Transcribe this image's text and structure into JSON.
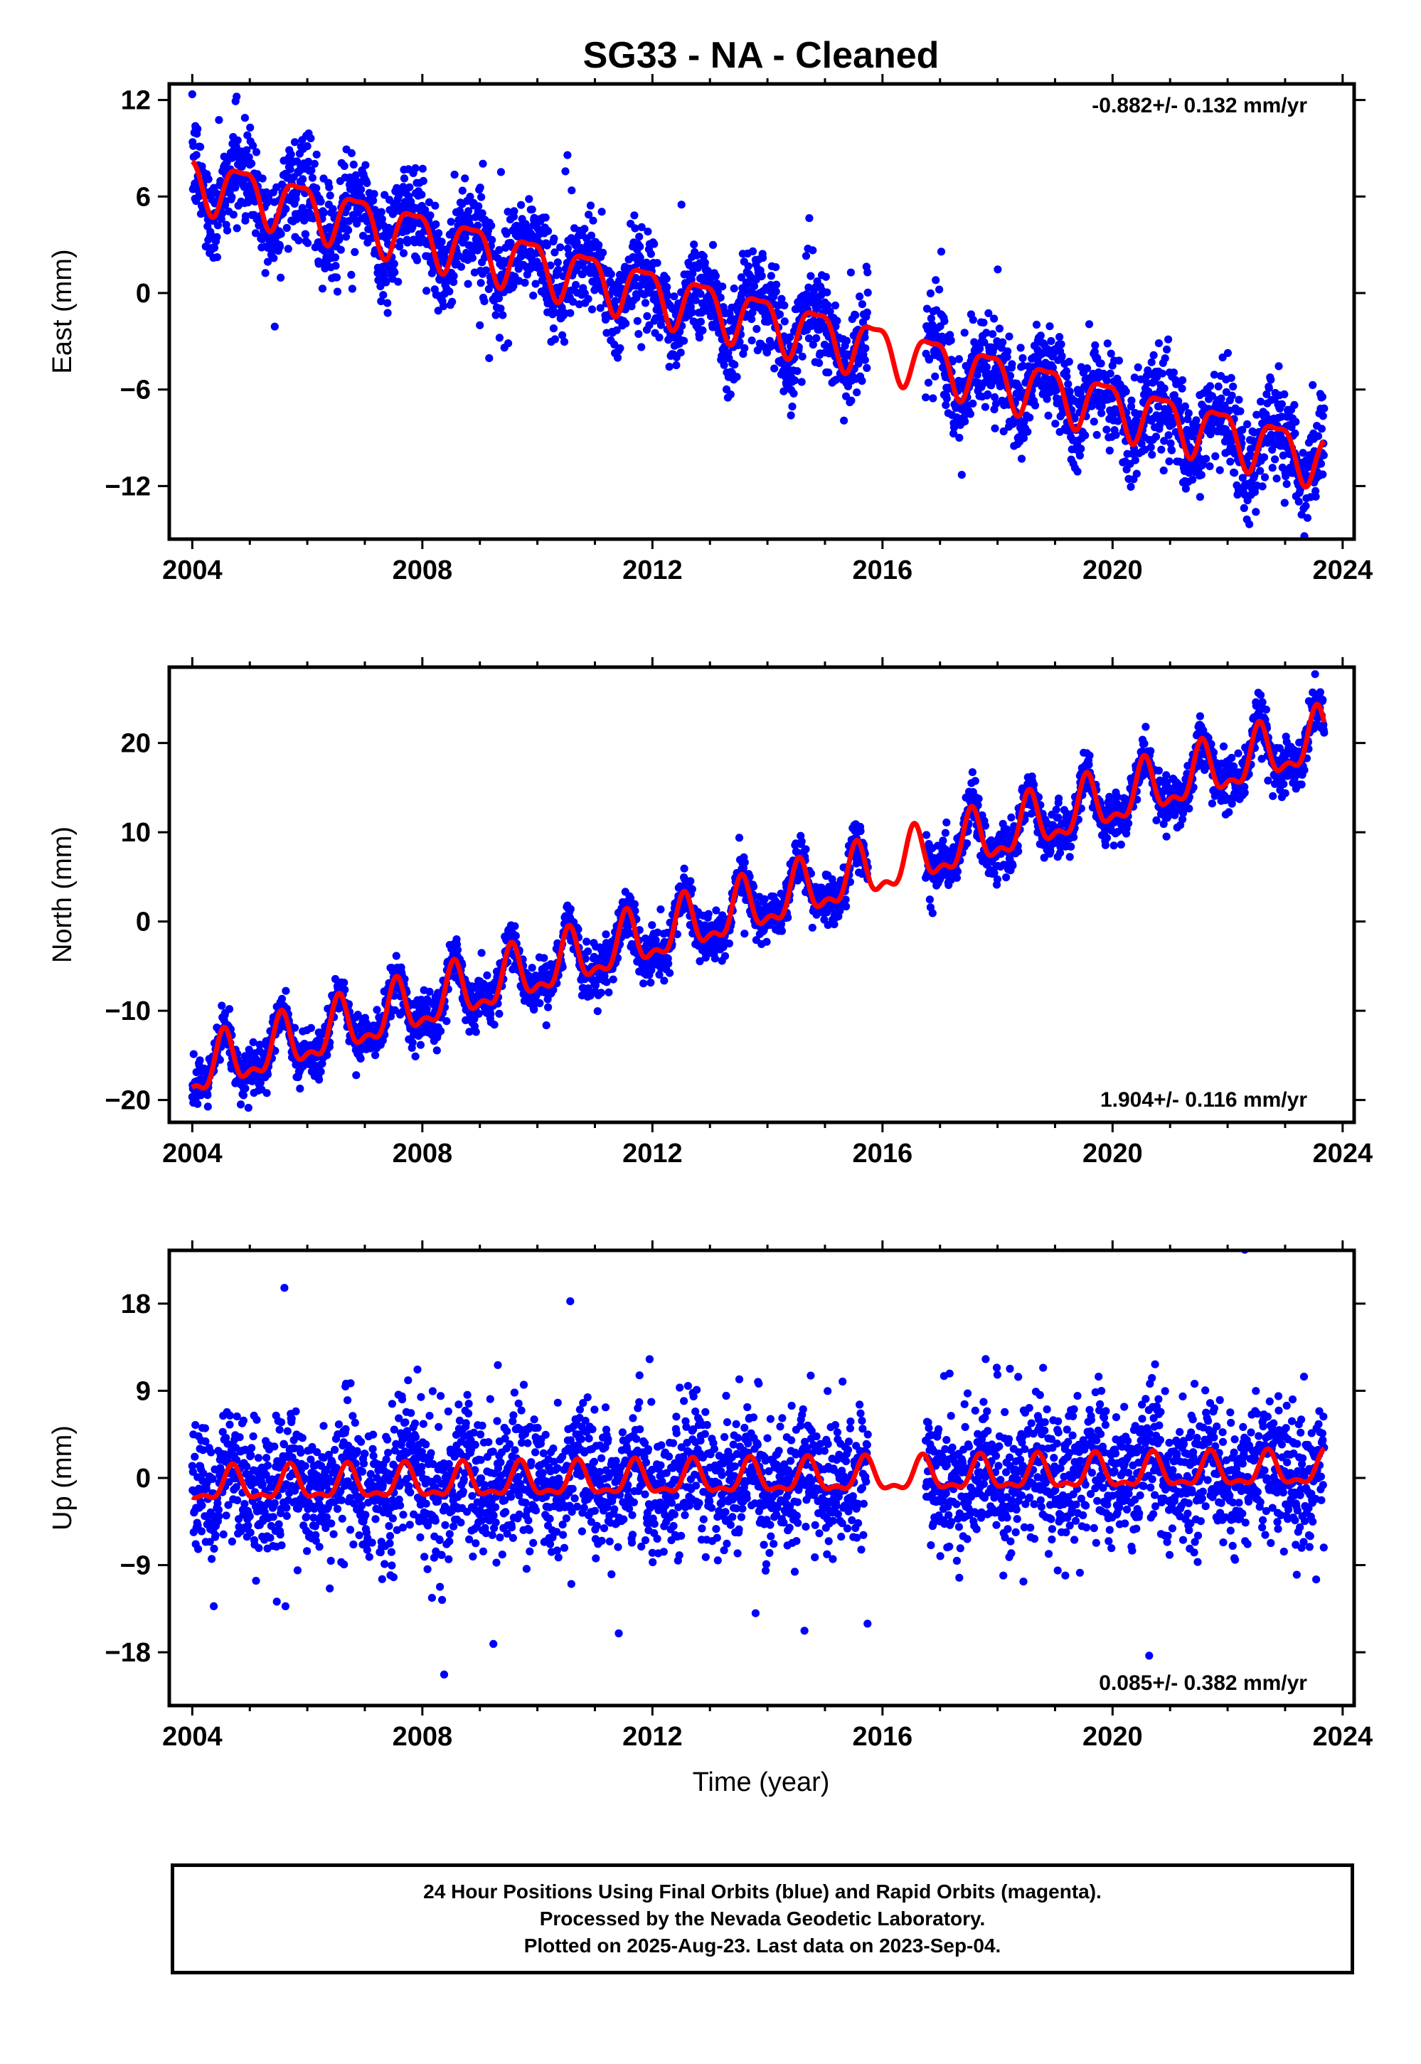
{
  "title": "SG33  - NA - Cleaned",
  "xlabel": "Time (year)",
  "footer": {
    "line1": "24 Hour Positions Using Final Orbits (blue) and Rapid Orbits (magenta).",
    "line2": "Processed by the Nevada Geodetic Laboratory.",
    "line3": "Plotted on 2025-Aug-23. Last data on 2023-Sep-04."
  },
  "colors": {
    "points": "#0000ff",
    "model": "#ff0000",
    "frame": "#000000"
  },
  "chart_data": [
    {
      "type": "scatter",
      "ylabel": "East (mm)",
      "rate_label": "-0.882+/- 0.132 mm/yr",
      "rate_position": "top-right",
      "xlim": [
        2003.6,
        2024.2
      ],
      "ylim": [
        -15.3,
        13.0
      ],
      "x_ticks": [
        "2004",
        "2008",
        "2012",
        "2016",
        "2020",
        "2024"
      ],
      "y_ticks": [
        12,
        6,
        0,
        -6,
        -12
      ],
      "y_tick_labels": [
        "12",
        "6",
        "0",
        "−6",
        "−12"
      ],
      "data_start": 2004.0,
      "data_end": 2023.68,
      "gap": [
        2015.75,
        2016.75
      ],
      "model": {
        "ref_year": 2004.0,
        "intercept": 7.1,
        "rate": -0.882,
        "annual_amp": 1.6,
        "annual_phase_year": 2004.85,
        "semiannual_amp": 0.5,
        "semiannual_phase_year": 2004.1
      },
      "scatter_sigma": 1.5,
      "series": [
        {
          "name": "24 Hour Positions",
          "marker": "dot"
        }
      ]
    },
    {
      "type": "scatter",
      "ylabel": "North (mm)",
      "rate_label": "1.904+/- 0.116 mm/yr",
      "rate_position": "bottom-right",
      "xlim": [
        2003.6,
        2024.2
      ],
      "ylim": [
        -22.5,
        28.5
      ],
      "x_ticks": [
        "2004",
        "2008",
        "2012",
        "2016",
        "2020",
        "2024"
      ],
      "y_ticks": [
        20,
        10,
        0,
        -10,
        -20
      ],
      "y_tick_labels": [
        "20",
        "10",
        "0",
        "−10",
        "−20"
      ],
      "data_start": 2004.0,
      "data_end": 2023.68,
      "gap": [
        2015.75,
        2016.75
      ],
      "model": {
        "ref_year": 2004.0,
        "intercept": -17.0,
        "rate": 1.904,
        "annual_amp": 2.8,
        "annual_phase_year": 2004.55,
        "semiannual_amp": 1.3,
        "semiannual_phase_year": 2004.05
      },
      "scatter_sigma": 1.3,
      "series": [
        {
          "name": "24 Hour Positions",
          "marker": "dot"
        }
      ]
    },
    {
      "type": "scatter",
      "ylabel": "Up (mm)",
      "rate_label": "0.085+/- 0.382 mm/yr",
      "rate_position": "bottom-right",
      "xlim": [
        2003.6,
        2024.2
      ],
      "ylim": [
        -23.5,
        23.5
      ],
      "x_ticks": [
        "2004",
        "2008",
        "2012",
        "2016",
        "2020",
        "2024"
      ],
      "y_ticks": [
        18,
        9,
        0,
        -9,
        -18
      ],
      "y_tick_labels": [
        "18",
        "9",
        "0",
        "−9",
        "−18"
      ],
      "data_start": 2004.0,
      "data_end": 2023.68,
      "gap": [
        2015.75,
        2016.75
      ],
      "model": {
        "ref_year": 2004.0,
        "intercept": -0.9,
        "rate": 0.085,
        "annual_amp": 1.6,
        "annual_phase_year": 2004.7,
        "semiannual_amp": 0.7,
        "semiannual_phase_year": 2004.2
      },
      "scatter_sigma": 3.6,
      "series": [
        {
          "name": "24 Hour Positions",
          "marker": "dot"
        }
      ]
    }
  ]
}
